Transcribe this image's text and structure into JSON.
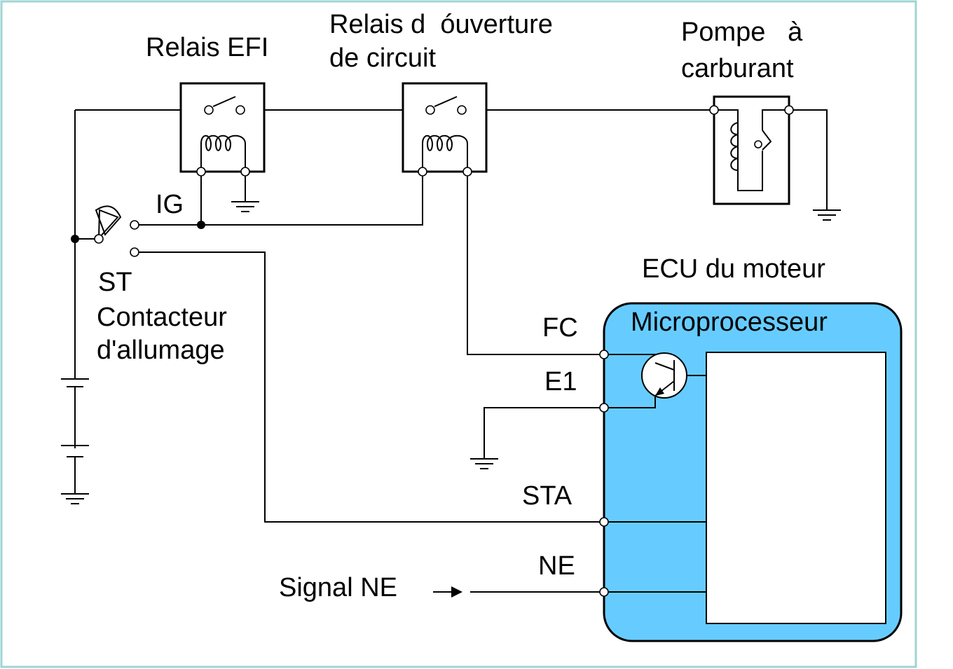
{
  "colors": {
    "border": "#9fd4d4",
    "ecu_fill": "#66ccff",
    "wire": "#000000"
  },
  "labels": {
    "efi_relay": "Relais EFI",
    "circuit_relay_line1": "Relais d  óuverture",
    "circuit_relay_line2": "de circuit",
    "fuel_pump_line1": "Pompe   à",
    "fuel_pump_line2": "carburant",
    "ig": "IG",
    "st": "ST",
    "ignition_switch_line1": "Contacteur",
    "ignition_switch_line2": "d'allumage",
    "ecu": "ECU du moteur",
    "microprocessor": "Microprocesseur",
    "fc": "FC",
    "e1": "E1",
    "sta": "STA",
    "ne": "NE",
    "ne_signal": "Signal NE"
  },
  "icons": {
    "ground": "ground-icon",
    "battery": "battery-icon",
    "relay": "relay-icon",
    "transistor": "transistor-icon",
    "ignition_switch": "ignition-switch-icon",
    "arrow": "arrow-right-icon"
  }
}
